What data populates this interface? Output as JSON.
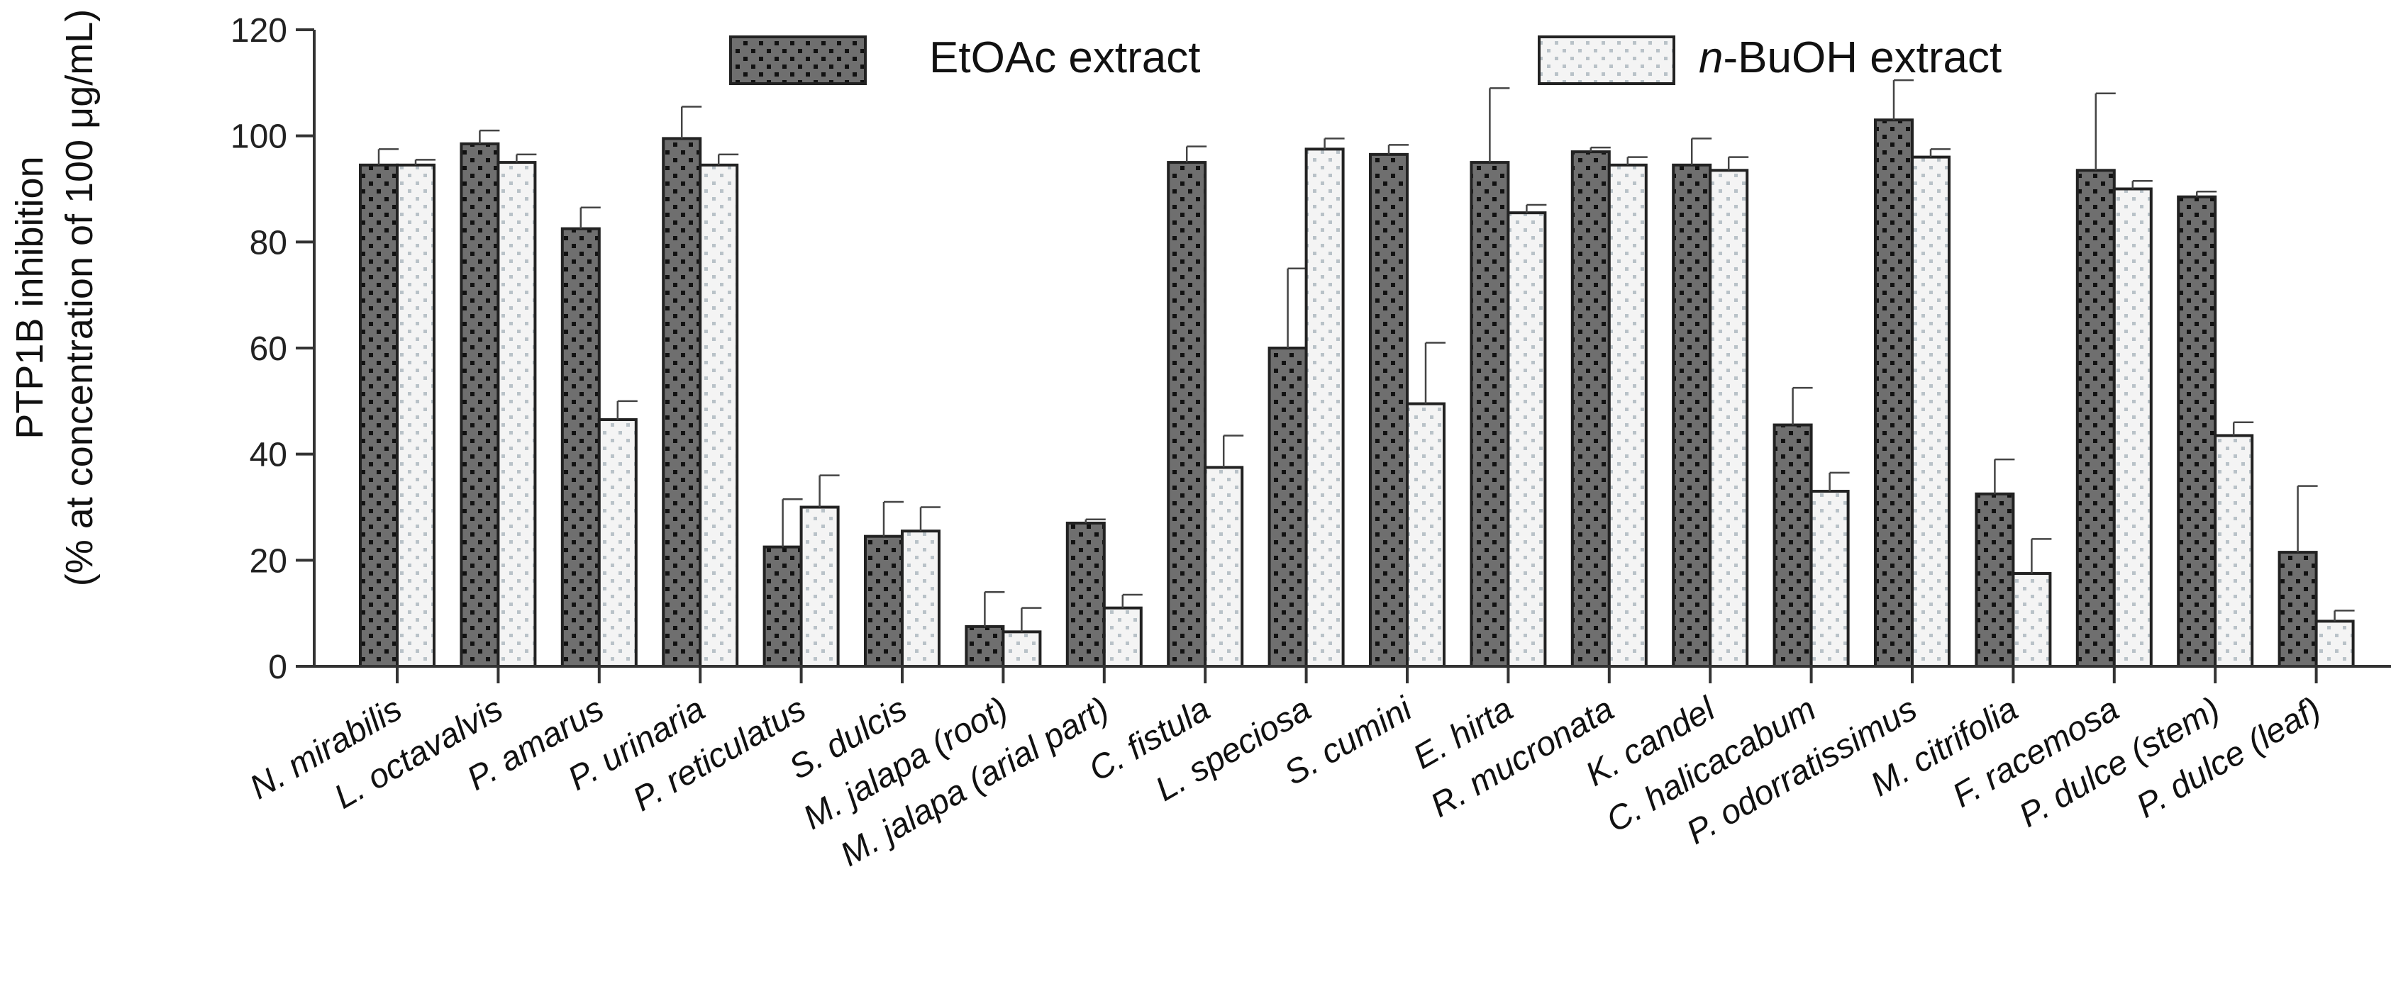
{
  "colors": {
    "etoac_fill": "#6f6f6f",
    "etoac_dot": "#111111",
    "buoh_fill": "#f4f4f4",
    "buoh_dot": "#b9c2c8",
    "axis": "#333333"
  },
  "chart_data": {
    "type": "bar",
    "title": "",
    "xlabel": "",
    "ylabel_line1": "PTP1B inhibition",
    "ylabel_line2": "(% at concentration of 100 μg/mL)",
    "ylim": [
      0,
      120
    ],
    "yticks": [
      0,
      20,
      40,
      60,
      80,
      100,
      120
    ],
    "legend_position": "top",
    "categories": [
      "N. mirabilis",
      "L. octavalvis",
      "P. amarus",
      "P. urinaria",
      "P. reticulatus",
      "S. dulcis",
      "M. jalapa (root)",
      "M. jalapa (arial part)",
      "C. fistula",
      "L. speciosa",
      "S. cumini",
      "E. hirta",
      "R. mucronata",
      "K. candel",
      "C. halicacabum",
      "P. odorratissimus",
      "M. citrifolia",
      "F. racemosa",
      "P. dulce (stem)",
      "P. dulce (leaf)"
    ],
    "series": [
      {
        "name": "EtOAc extract",
        "legend_label": "EtOAc extract",
        "values": [
          94.5,
          98.5,
          82.5,
          99.5,
          22.5,
          24.5,
          7.5,
          27.0,
          95.0,
          60.0,
          96.5,
          95.0,
          97.0,
          94.5,
          45.5,
          103.0,
          32.5,
          93.5,
          88.5,
          21.5
        ],
        "errors": [
          3.0,
          2.5,
          4.0,
          6.0,
          9.0,
          6.5,
          6.5,
          0.7,
          3.0,
          15.0,
          1.8,
          14.0,
          0.8,
          5.0,
          7.0,
          7.5,
          6.5,
          14.5,
          1.0,
          12.5
        ]
      },
      {
        "name": "n-BuOH extract",
        "legend_prefix": "n",
        "legend_label": "-BuOH extract",
        "values": [
          94.5,
          95.0,
          46.5,
          94.5,
          30.0,
          25.5,
          6.5,
          11.0,
          37.5,
          97.5,
          49.5,
          85.5,
          94.5,
          93.5,
          33.0,
          96.0,
          17.5,
          90.0,
          43.5,
          8.5
        ],
        "errors": [
          1.0,
          1.5,
          3.5,
          2.0,
          6.0,
          4.5,
          4.5,
          2.5,
          6.0,
          2.0,
          11.5,
          1.5,
          1.5,
          2.5,
          3.5,
          1.5,
          6.5,
          1.5,
          2.5,
          2.0
        ]
      }
    ]
  }
}
